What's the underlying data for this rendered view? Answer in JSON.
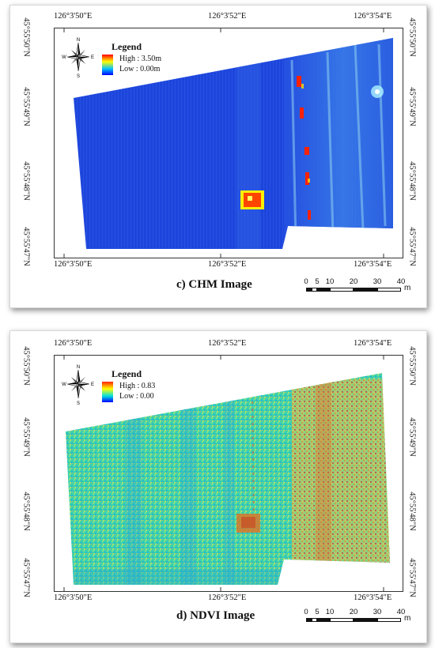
{
  "figure_a": {
    "caption": "c)  CHM Image",
    "legend": {
      "title": "Legend",
      "high": "High : 3.50m",
      "low": "Low  : 0.00m",
      "gradient": [
        "#ff0000",
        "#ffff00",
        "#00c0ff",
        "#0000ff"
      ]
    },
    "lon_labels": [
      "126°3'50\"E",
      "126°3'52\"E",
      "126°3'54\"E"
    ],
    "lat_labels": [
      "45°55'50\"N",
      "45°55'49\"N",
      "45°55'48\"N",
      "45°55'47\"N"
    ],
    "scale": {
      "ticks": [
        "0",
        "5",
        "10",
        "20",
        "30",
        "40"
      ],
      "unit": "m"
    }
  },
  "figure_b": {
    "caption": "d)  NDVI Image",
    "legend": {
      "title": "Legend",
      "high": "High : 0.83",
      "low": "Low  : 0.00",
      "gradient": [
        "#ff2200",
        "#ffff00",
        "#00e0e0",
        "#0000ff"
      ]
    },
    "lon_labels": [
      "126°3'50\"E",
      "126°3'52\"E",
      "126°3'54\"E"
    ],
    "lat_labels": [
      "45°55'50\"N",
      "45°55'49\"N",
      "45°55'48\"N",
      "45°55'47\"N"
    ],
    "scale": {
      "ticks": [
        "0",
        "5",
        "10",
        "20",
        "30",
        "40"
      ],
      "unit": "m"
    }
  },
  "compass_letters": {
    "n": "N",
    "e": "E",
    "s": "S",
    "w": "W"
  },
  "colors": {
    "chm_base": "#1a3fd6",
    "chm_hot": "#ff2a00",
    "ndvi_base": "#38d0b0",
    "ndvi_hot": "#e28a2a"
  }
}
